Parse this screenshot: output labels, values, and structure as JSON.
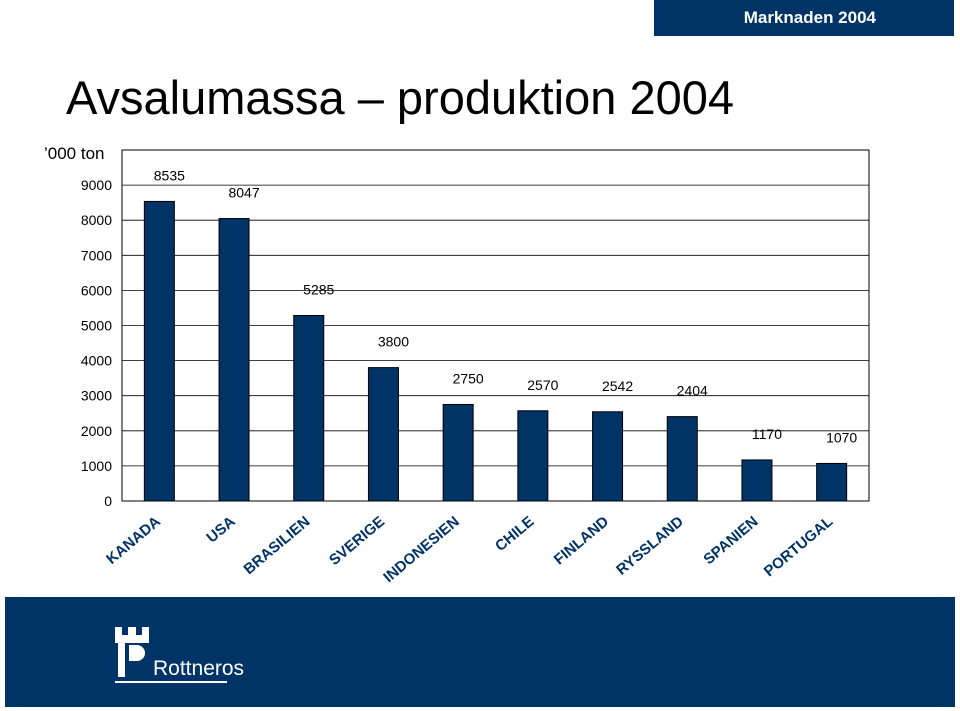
{
  "header": {
    "badge": "Marknaden 2004"
  },
  "page": {
    "title": "Avsalumassa – produktion 2004"
  },
  "chart_data": {
    "type": "bar",
    "title": "Avsalumassa – produktion 2004",
    "ylabel": "’000 ton",
    "xlabel": "",
    "ylim": [
      0,
      10000
    ],
    "yticks": [
      0,
      1000,
      2000,
      3000,
      4000,
      5000,
      6000,
      7000,
      8000,
      9000
    ],
    "grid": true,
    "legend": "none",
    "categories": [
      "KANADA",
      "USA",
      "BRASILIEN",
      "SVERIGE",
      "INDONESIEN",
      "CHILE",
      "FINLAND",
      "RYSSLAND",
      "SPANIEN",
      "PORTUGAL"
    ],
    "values": [
      8535,
      8047,
      5285,
      3800,
      2750,
      2570,
      2542,
      2404,
      1170,
      1070
    ],
    "bar_color": "#003366"
  },
  "footer": {
    "brand": "Rottneros"
  }
}
